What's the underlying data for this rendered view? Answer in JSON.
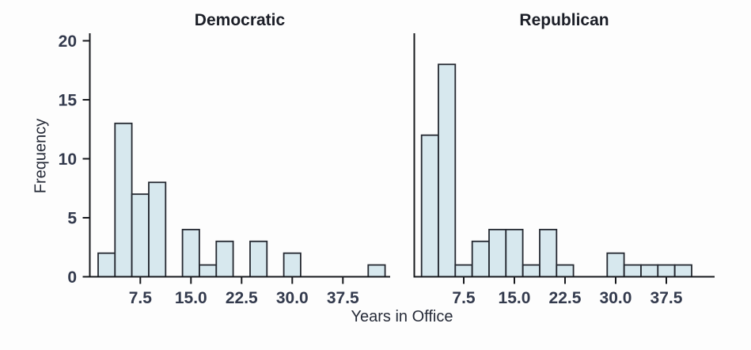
{
  "chart_data": {
    "type": "bar",
    "subtype": "paired-histograms",
    "xlabel": "Years in Office",
    "ylabel": "Frequency",
    "bin_width": 2.5,
    "x_tick_labels": [
      "7.5",
      "15.0",
      "22.5",
      "30.0",
      "37.5"
    ],
    "y_tick_labels": [
      "0",
      "5",
      "10",
      "15",
      "20"
    ],
    "ylim": [
      0,
      20
    ],
    "grid": false,
    "legend": "none",
    "panels": [
      {
        "title": "Democratic",
        "midpoints": [
          2.5,
          5.0,
          7.5,
          10.0,
          12.5,
          15.0,
          17.5,
          20.0,
          22.5,
          25.0,
          27.5,
          30.0,
          32.5,
          35.0,
          37.5,
          40.0,
          42.5
        ],
        "counts": [
          2,
          13,
          7,
          8,
          0,
          4,
          1,
          3,
          0,
          3,
          0,
          2,
          0,
          0,
          0,
          0,
          1
        ]
      },
      {
        "title": "Republican",
        "midpoints": [
          2.5,
          5.0,
          7.5,
          10.0,
          12.5,
          15.0,
          17.5,
          20.0,
          22.5,
          25.0,
          27.5,
          30.0,
          32.5,
          35.0,
          37.5,
          40.0
        ],
        "counts": [
          12,
          18,
          1,
          3,
          4,
          4,
          1,
          4,
          1,
          0,
          0,
          2,
          1,
          1,
          1,
          1
        ]
      }
    ],
    "colors": {
      "bar_fill": "#d7e8ee",
      "bar_stroke": "#242830",
      "axis": "#17191d",
      "tick_label": "#333a4d",
      "axis_label": "#262b38",
      "title": "#1b1e27"
    }
  }
}
